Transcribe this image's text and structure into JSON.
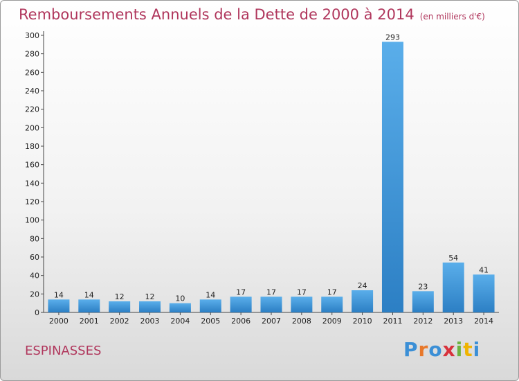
{
  "header": {
    "title": "Remboursements Annuels de la Dette de 2000 à 2014",
    "subtitle": "(en milliers d'€)"
  },
  "footer": {
    "town": "ESPINASSES",
    "logo": [
      "P",
      "r",
      "o",
      "x",
      "i",
      "t",
      "i"
    ]
  },
  "colors": {
    "title": "#b0365c",
    "bar_light": "#5aaeea",
    "bar_dark": "#2c7fc4",
    "logo": [
      "#3b8fd6",
      "#e8782a",
      "#3b8fd6",
      "#d8323c",
      "#6db33f",
      "#f0b400",
      "#3b8fd6"
    ]
  },
  "chart_data": {
    "type": "bar",
    "title": "Remboursements Annuels de la Dette de 2000 à 2014",
    "subtitle": "(en milliers d'€)",
    "xlabel": "",
    "ylabel": "",
    "categories": [
      "2000",
      "2001",
      "2002",
      "2003",
      "2004",
      "2005",
      "2006",
      "2007",
      "2008",
      "2009",
      "2010",
      "2011",
      "2012",
      "2013",
      "2014"
    ],
    "values": [
      14,
      14,
      12,
      12,
      10,
      14,
      17,
      17,
      17,
      17,
      24,
      293,
      23,
      54,
      41
    ],
    "ylim": [
      0,
      300
    ],
    "yticks": [
      0,
      20,
      40,
      60,
      80,
      100,
      120,
      140,
      160,
      180,
      200,
      220,
      240,
      260,
      280,
      300
    ],
    "grid": false,
    "legend": "none",
    "data_labels": true
  }
}
